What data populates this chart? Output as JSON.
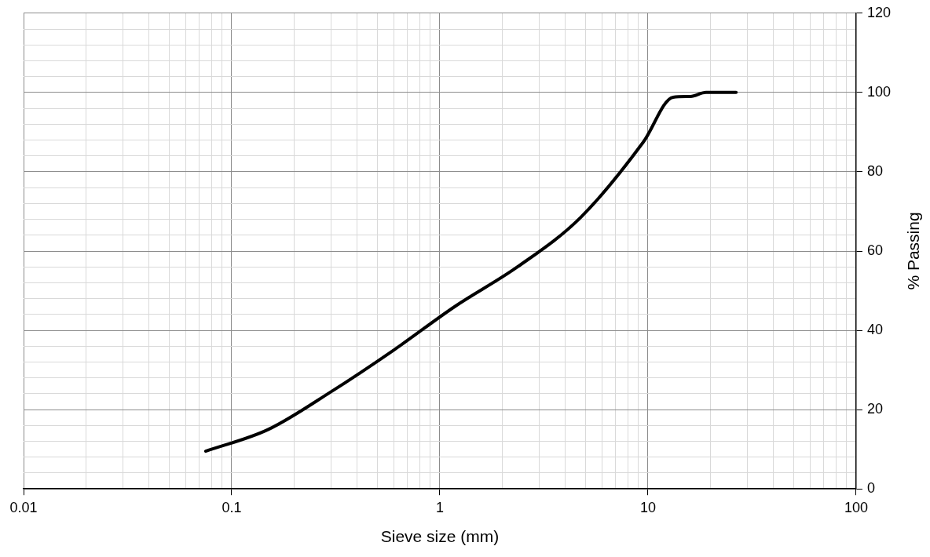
{
  "chart_data": {
    "type": "line",
    "xlabel": "Sieve size (mm)",
    "ylabel": "% Passing",
    "log": "x",
    "grid": true,
    "legend": false,
    "marker": "none",
    "line_style": "solid",
    "x": [
      0.075,
      0.15,
      0.3,
      0.6,
      1.18,
      2.36,
      4.75,
      9.5,
      13.2,
      16,
      19,
      26.5
    ],
    "series": [
      {
        "color": "#000000",
        "values": [
          9.5,
          15,
          24.5,
          35,
          46,
          56,
          68.5,
          87.5,
          98.8,
          99,
          100,
          100
        ]
      }
    ],
    "xlim": [
      0.01,
      100
    ],
    "xticks": [
      0.01,
      {
        "value": 0.02,
        "label": null
      },
      {
        "value": 0.03,
        "label": null
      },
      {
        "value": 0.04,
        "label": null
      },
      {
        "value": 0.05,
        "label": null
      },
      {
        "value": 0.06,
        "label": null
      },
      {
        "value": 0.07,
        "label": null
      },
      {
        "value": 0.08,
        "label": null
      },
      {
        "value": 0.09,
        "label": null
      },
      0.1,
      {
        "value": 0.2,
        "label": null
      },
      {
        "value": 0.3,
        "label": null
      },
      {
        "value": 0.4,
        "label": null
      },
      {
        "value": 0.5,
        "label": null
      },
      {
        "value": 0.6,
        "label": null
      },
      {
        "value": 0.7,
        "label": null
      },
      {
        "value": 0.8,
        "label": null
      },
      {
        "value": 0.9,
        "label": null
      },
      1,
      {
        "value": 2,
        "label": null
      },
      {
        "value": 3,
        "label": null
      },
      {
        "value": 4,
        "label": null
      },
      {
        "value": 5,
        "label": null
      },
      {
        "value": 6,
        "label": null
      },
      {
        "value": 7,
        "label": null
      },
      {
        "value": 8,
        "label": null
      },
      {
        "value": 9,
        "label": null
      },
      10,
      {
        "value": 20,
        "label": null
      },
      {
        "value": 30,
        "label": null
      },
      {
        "value": 40,
        "label": null
      },
      {
        "value": 50,
        "label": null
      },
      {
        "value": 60,
        "label": null
      },
      {
        "value": 70,
        "label": null
      },
      {
        "value": 80,
        "label": null
      },
      {
        "value": 90,
        "label": null
      },
      100
    ],
    "ylim": [
      0,
      120
    ],
    "yticks": [
      0,
      {
        "value": 4,
        "label": null
      },
      {
        "value": 8,
        "label": null
      },
      {
        "value": 12,
        "label": null
      },
      {
        "value": 16,
        "label": null
      },
      20,
      {
        "value": 24,
        "label": null
      },
      {
        "value": 28,
        "label": null
      },
      {
        "value": 32,
        "label": null
      },
      {
        "value": 36,
        "label": null
      },
      40,
      {
        "value": 44,
        "label": null
      },
      {
        "value": 48,
        "label": null
      },
      {
        "value": 52,
        "label": null
      },
      {
        "value": 56,
        "label": null
      },
      60,
      {
        "value": 64,
        "label": null
      },
      {
        "value": 68,
        "label": null
      },
      {
        "value": 72,
        "label": null
      },
      {
        "value": 76,
        "label": null
      },
      80,
      {
        "value": 84,
        "label": null
      },
      {
        "value": 88,
        "label": null
      },
      {
        "value": 92,
        "label": null
      },
      {
        "value": 96,
        "label": null
      },
      100,
      {
        "value": 104,
        "label": null
      },
      {
        "value": 108,
        "label": null
      },
      {
        "value": 112,
        "label": null
      },
      {
        "value": 116,
        "label": null
      },
      120
    ]
  }
}
